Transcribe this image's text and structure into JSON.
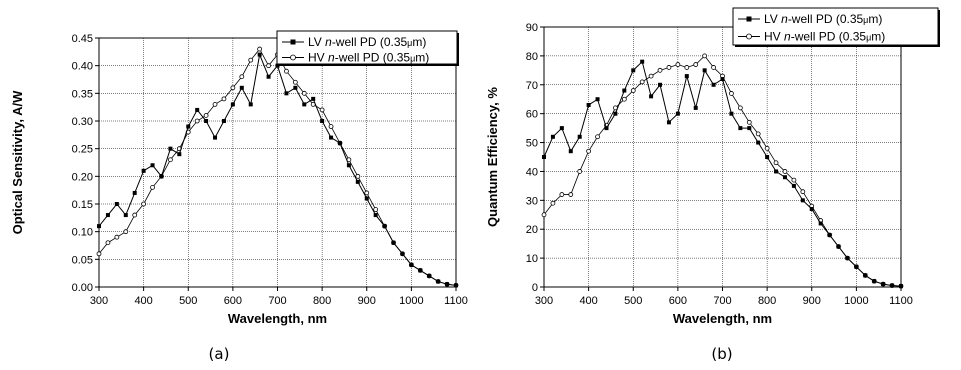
{
  "chart_data": [
    {
      "type": "line",
      "panel_label": "(a)",
      "xlabel": "Wavelength, nm",
      "ylabel": "Optical Sensitivity, A/W",
      "xlim": [
        300,
        1100
      ],
      "ylim": [
        0,
        0.45
      ],
      "xticks": [
        "300",
        "400",
        "500",
        "600",
        "700",
        "800",
        "900",
        "1000",
        "1100"
      ],
      "yticks": [
        "0.00",
        "0.05",
        "0.10",
        "0.15",
        "0.20",
        "0.25",
        "0.30",
        "0.35",
        "0.40",
        "0.45"
      ],
      "grid": true,
      "legend_position": "top-right",
      "series": [
        {
          "name": "LV n-well PD (0.35μm)",
          "name_parts": [
            "LV ",
            "n",
            "-well PD (0.35",
            "μ",
            "m)"
          ],
          "color": "#000000",
          "marker": "filled-square",
          "x": [
            300,
            320,
            340,
            360,
            380,
            400,
            420,
            440,
            460,
            480,
            500,
            520,
            540,
            560,
            580,
            600,
            620,
            640,
            660,
            680,
            700,
            720,
            740,
            760,
            780,
            800,
            820,
            840,
            860,
            880,
            900,
            920,
            940,
            960,
            980,
            1000,
            1020,
            1040,
            1060,
            1080,
            1100
          ],
          "y": [
            0.11,
            0.13,
            0.15,
            0.13,
            0.17,
            0.21,
            0.22,
            0.2,
            0.25,
            0.24,
            0.29,
            0.32,
            0.3,
            0.27,
            0.3,
            0.33,
            0.36,
            0.33,
            0.42,
            0.38,
            0.4,
            0.35,
            0.36,
            0.33,
            0.34,
            0.3,
            0.27,
            0.26,
            0.22,
            0.19,
            0.16,
            0.13,
            0.11,
            0.08,
            0.06,
            0.04,
            0.03,
            0.02,
            0.01,
            0.005,
            0.003
          ]
        },
        {
          "name": "HV n-well PD (0.35μm)",
          "name_parts": [
            "HV ",
            "n",
            "-well PD (0.35",
            "μ",
            "m)"
          ],
          "color": "#000000",
          "marker": "open-circle",
          "x": [
            300,
            320,
            340,
            360,
            380,
            400,
            420,
            440,
            460,
            480,
            500,
            520,
            540,
            560,
            580,
            600,
            620,
            640,
            660,
            680,
            700,
            720,
            740,
            760,
            780,
            800,
            820,
            840,
            860,
            880,
            900,
            920,
            940,
            960,
            980,
            1000,
            1020,
            1040,
            1060,
            1080,
            1100
          ],
          "y": [
            0.06,
            0.08,
            0.09,
            0.1,
            0.13,
            0.15,
            0.18,
            0.2,
            0.23,
            0.25,
            0.28,
            0.3,
            0.31,
            0.33,
            0.34,
            0.36,
            0.38,
            0.41,
            0.43,
            0.4,
            0.42,
            0.39,
            0.37,
            0.35,
            0.33,
            0.32,
            0.29,
            0.26,
            0.23,
            0.2,
            0.17,
            0.14,
            0.11,
            0.08,
            0.06,
            0.04,
            0.03,
            0.02,
            0.01,
            0.005,
            0.003
          ]
        }
      ]
    },
    {
      "type": "line",
      "panel_label": "(b)",
      "xlabel": "Wavelength, nm",
      "ylabel": "Quantum Efficiency, %",
      "xlim": [
        300,
        1100
      ],
      "ylim": [
        0,
        90
      ],
      "xticks": [
        "300",
        "400",
        "500",
        "600",
        "700",
        "800",
        "900",
        "1000",
        "1100"
      ],
      "yticks": [
        "0",
        "10",
        "20",
        "30",
        "40",
        "50",
        "60",
        "70",
        "80",
        "90"
      ],
      "grid": true,
      "legend_position": "top-right",
      "series": [
        {
          "name": "LV n-well PD (0.35μm)",
          "name_parts": [
            "LV ",
            "n",
            "-well PD (0.35",
            "μ",
            "m)"
          ],
          "color": "#000000",
          "marker": "filled-square",
          "x": [
            300,
            320,
            340,
            360,
            380,
            400,
            420,
            440,
            460,
            480,
            500,
            520,
            540,
            560,
            580,
            600,
            620,
            640,
            660,
            680,
            700,
            720,
            740,
            760,
            780,
            800,
            820,
            840,
            860,
            880,
            900,
            920,
            940,
            960,
            980,
            1000,
            1020,
            1040,
            1060,
            1080,
            1100
          ],
          "y": [
            45,
            52,
            55,
            47,
            52,
            63,
            65,
            55,
            60,
            68,
            75,
            78,
            66,
            70,
            57,
            60,
            73,
            62,
            75,
            70,
            72,
            60,
            55,
            55,
            50,
            45,
            40,
            38,
            35,
            30,
            27,
            22,
            18,
            14,
            10,
            7,
            4,
            2,
            1,
            0.5,
            0.3
          ]
        },
        {
          "name": "HV n-well PD (0.35μm)",
          "name_parts": [
            "HV ",
            "n",
            "-well PD (0.35",
            "μ",
            "m)"
          ],
          "color": "#000000",
          "marker": "open-circle",
          "x": [
            300,
            320,
            340,
            360,
            380,
            400,
            420,
            440,
            460,
            480,
            500,
            520,
            540,
            560,
            580,
            600,
            620,
            640,
            660,
            680,
            700,
            720,
            740,
            760,
            780,
            800,
            820,
            840,
            860,
            880,
            900,
            920,
            940,
            960,
            980,
            1000,
            1020,
            1040,
            1060,
            1080,
            1100
          ],
          "y": [
            25,
            29,
            32,
            32,
            40,
            47,
            52,
            56,
            62,
            65,
            68,
            71,
            73,
            75,
            76,
            77,
            76,
            77,
            80,
            76,
            73,
            67,
            62,
            57,
            53,
            48,
            43,
            40,
            37,
            33,
            28,
            23,
            18,
            14,
            10,
            7,
            4,
            2,
            1,
            0.5,
            0.3
          ]
        }
      ]
    }
  ]
}
